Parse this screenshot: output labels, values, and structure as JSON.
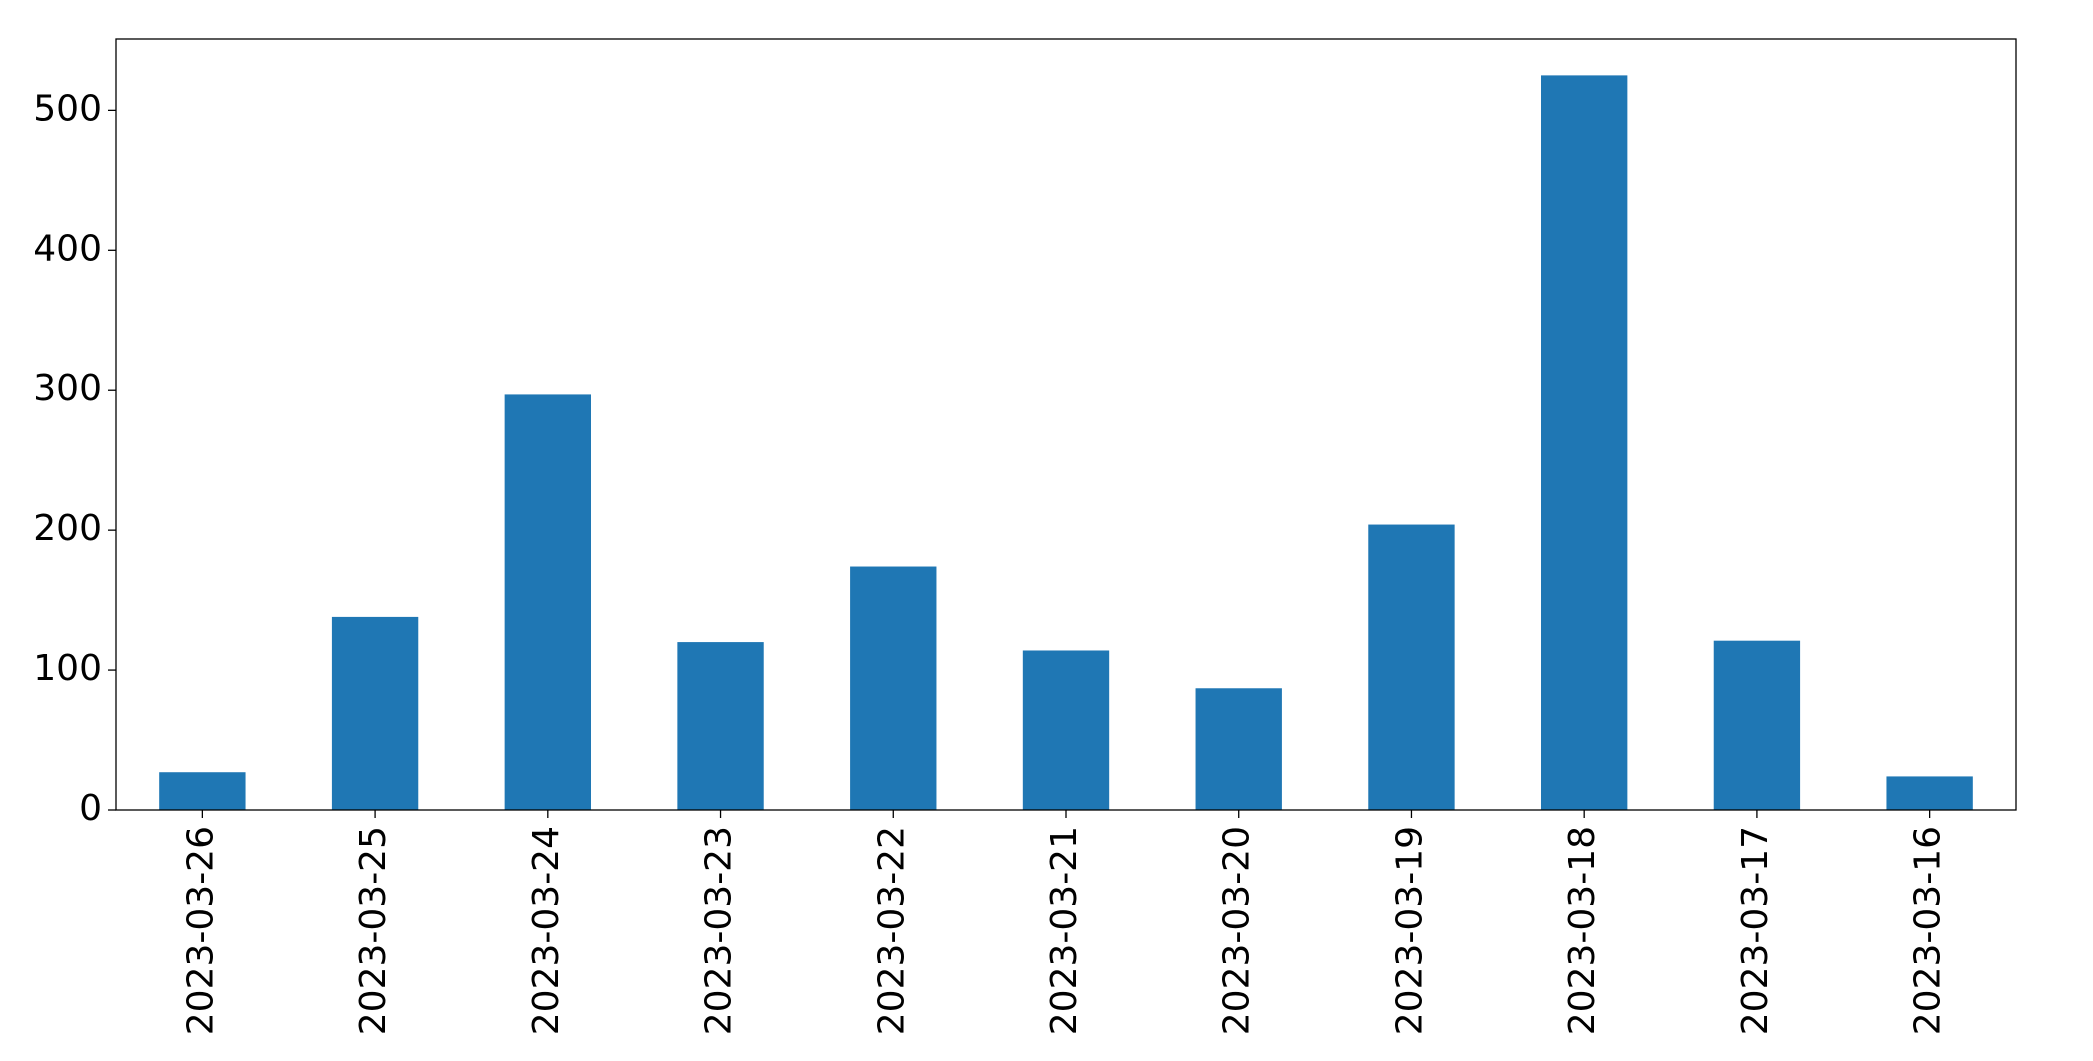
{
  "chart_data": {
    "type": "bar",
    "categories": [
      "2023-03-26",
      "2023-03-25",
      "2023-03-24",
      "2023-03-23",
      "2023-03-22",
      "2023-03-21",
      "2023-03-20",
      "2023-03-19",
      "2023-03-18",
      "2023-03-17",
      "2023-03-16"
    ],
    "values": [
      27,
      138,
      297,
      120,
      174,
      114,
      87,
      204,
      525,
      121,
      24
    ],
    "color": "#1f77b4",
    "ylim": [
      0,
      551
    ],
    "yticks": [
      0,
      100,
      200,
      300,
      400,
      500
    ],
    "grid": false
  }
}
